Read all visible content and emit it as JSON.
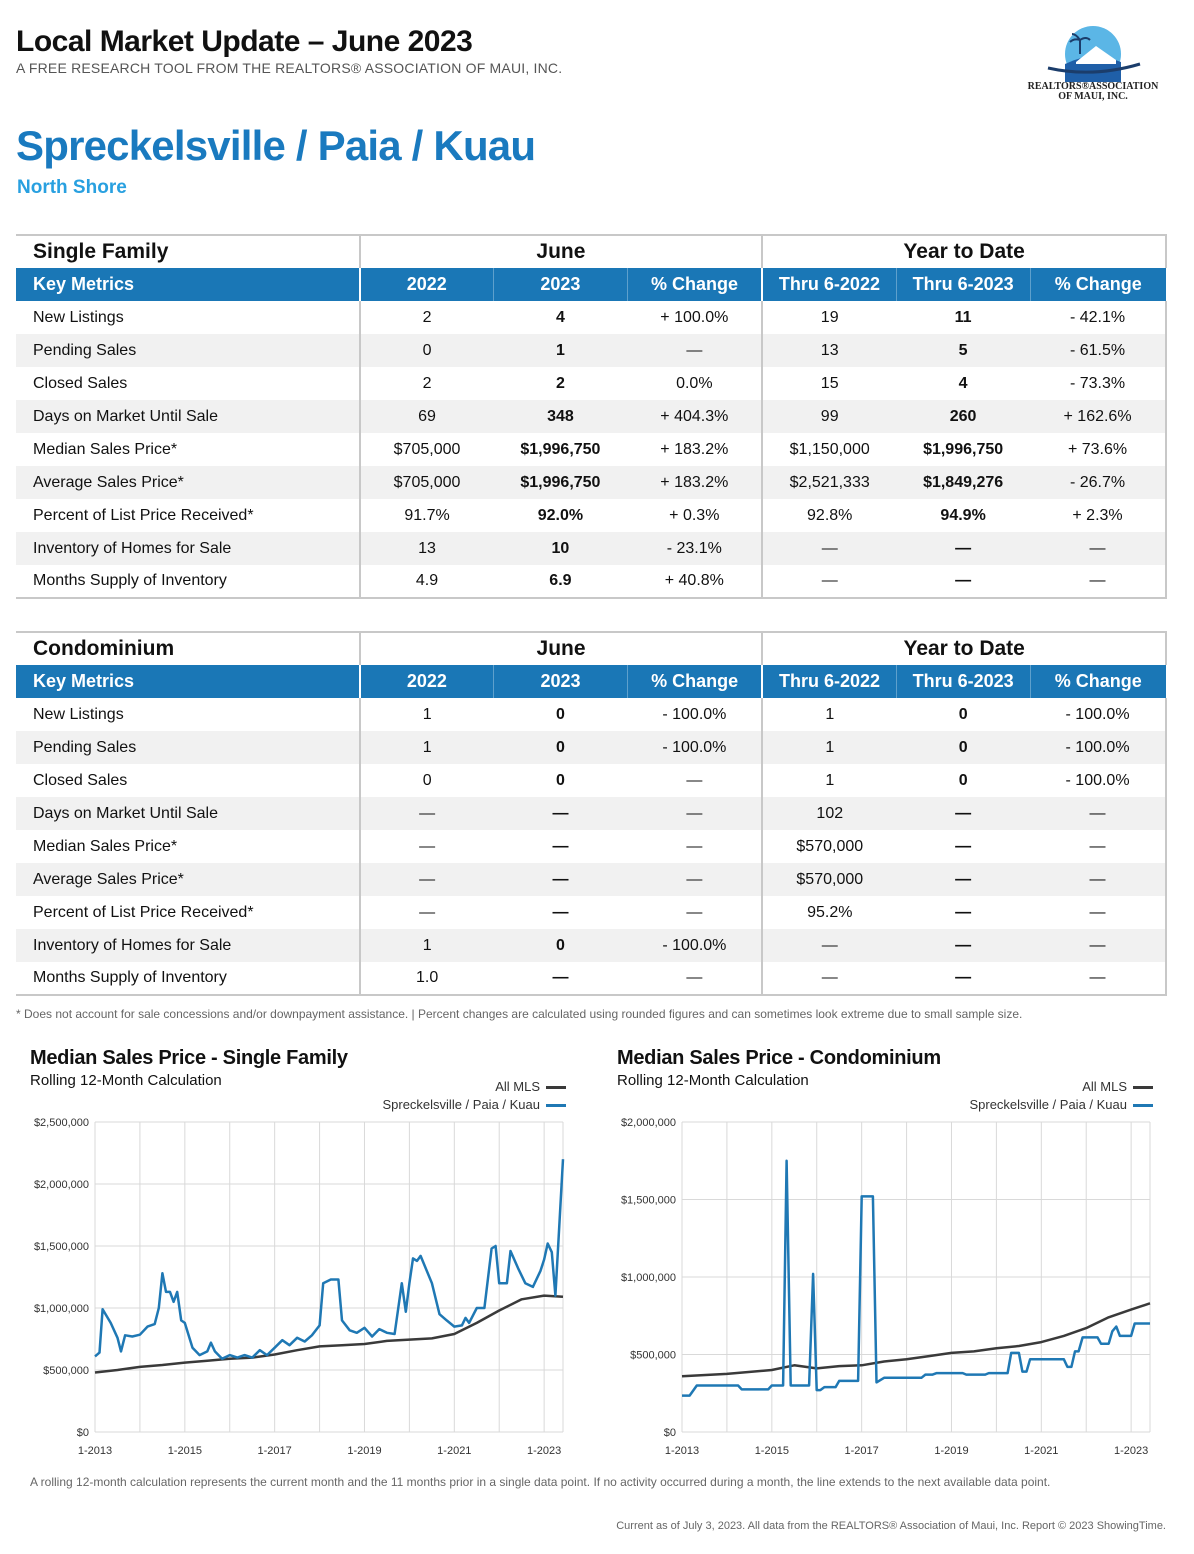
{
  "header": {
    "title": "Local Market Update – June 2023",
    "subtitle": "A FREE RESEARCH TOOL FROM THE REALTORS® ASSOCIATION OF MAUI, INC.",
    "area": "Spreckelsville / Paia / Kuau",
    "region": "North Shore",
    "logo_line1": "REALTORS®ASSOCIATION",
    "logo_line2": "OF MAUI, INC."
  },
  "tables": {
    "single_family": {
      "title": "Single Family",
      "period_june": "June",
      "period_ytd": "Year to Date",
      "headers": [
        "Key Metrics",
        "2022",
        "2023",
        "% Change",
        "Thru 6-2022",
        "Thru 6-2023",
        "% Change"
      ],
      "rows": [
        [
          "New Listings",
          "2",
          "4",
          "+ 100.0%",
          "19",
          "11",
          "- 42.1%"
        ],
        [
          "Pending Sales",
          "0",
          "1",
          "—",
          "13",
          "5",
          "- 61.5%"
        ],
        [
          "Closed Sales",
          "2",
          "2",
          "0.0%",
          "15",
          "4",
          "- 73.3%"
        ],
        [
          "Days on Market Until Sale",
          "69",
          "348",
          "+ 404.3%",
          "99",
          "260",
          "+ 162.6%"
        ],
        [
          "Median Sales Price*",
          "$705,000",
          "$1,996,750",
          "+ 183.2%",
          "$1,150,000",
          "$1,996,750",
          "+ 73.6%"
        ],
        [
          "Average Sales Price*",
          "$705,000",
          "$1,996,750",
          "+ 183.2%",
          "$2,521,333",
          "$1,849,276",
          "- 26.7%"
        ],
        [
          "Percent of List Price Received*",
          "91.7%",
          "92.0%",
          "+ 0.3%",
          "92.8%",
          "94.9%",
          "+ 2.3%"
        ],
        [
          "Inventory of Homes for Sale",
          "13",
          "10",
          "- 23.1%",
          "—",
          "—",
          "—"
        ],
        [
          "Months Supply of Inventory",
          "4.9",
          "6.9",
          "+ 40.8%",
          "—",
          "—",
          "—"
        ]
      ]
    },
    "condominium": {
      "title": "Condominium",
      "period_june": "June",
      "period_ytd": "Year to Date",
      "headers": [
        "Key Metrics",
        "2022",
        "2023",
        "% Change",
        "Thru 6-2022",
        "Thru 6-2023",
        "% Change"
      ],
      "rows": [
        [
          "New Listings",
          "1",
          "0",
          "- 100.0%",
          "1",
          "0",
          "- 100.0%"
        ],
        [
          "Pending Sales",
          "1",
          "0",
          "- 100.0%",
          "1",
          "0",
          "- 100.0%"
        ],
        [
          "Closed Sales",
          "0",
          "0",
          "—",
          "1",
          "0",
          "- 100.0%"
        ],
        [
          "Days on Market Until Sale",
          "—",
          "—",
          "—",
          "102",
          "—",
          "—"
        ],
        [
          "Median Sales Price*",
          "—",
          "—",
          "—",
          "$570,000",
          "—",
          "—"
        ],
        [
          "Average Sales Price*",
          "—",
          "—",
          "—",
          "$570,000",
          "—",
          "—"
        ],
        [
          "Percent of List Price Received*",
          "—",
          "—",
          "—",
          "95.2%",
          "—",
          "—"
        ],
        [
          "Inventory of Homes for Sale",
          "1",
          "0",
          "- 100.0%",
          "—",
          "—",
          "—"
        ],
        [
          "Months Supply of Inventory",
          "1.0",
          "—",
          "—",
          "—",
          "—",
          "—"
        ]
      ]
    }
  },
  "footnote": "* Does not account for sale concessions and/or downpayment assistance. | Percent changes are calculated using rounded figures and can sometimes look extreme due to small sample size.",
  "colors": {
    "primary": "#1a77b6",
    "area_title": "#1a7abf",
    "region": "#28a0e0",
    "all_mls": "#3a3a3a",
    "local": "#1f78b4"
  },
  "chart_data": [
    {
      "type": "line",
      "title": "Median Sales Price - Single Family",
      "subtitle": "Rolling 12-Month Calculation",
      "x_ticks": [
        "1-2013",
        "1-2015",
        "1-2017",
        "1-2019",
        "1-2021",
        "1-2023"
      ],
      "y_ticks": [
        "$0",
        "$500,000",
        "$1,000,000",
        "$1,500,000",
        "$2,000,000",
        "$2,500,000"
      ],
      "ylim": [
        0,
        2500000
      ],
      "xlim": [
        2013.0,
        2023.42
      ],
      "series": [
        {
          "name": "All MLS",
          "points": [
            [
              2013.0,
              480000
            ],
            [
              2013.5,
              500000
            ],
            [
              2014.0,
              525000
            ],
            [
              2014.5,
              540000
            ],
            [
              2015.0,
              560000
            ],
            [
              2015.5,
              575000
            ],
            [
              2016.0,
              590000
            ],
            [
              2016.5,
              600000
            ],
            [
              2017.0,
              625000
            ],
            [
              2017.5,
              660000
            ],
            [
              2018.0,
              690000
            ],
            [
              2018.5,
              700000
            ],
            [
              2019.0,
              710000
            ],
            [
              2019.5,
              735000
            ],
            [
              2020.0,
              745000
            ],
            [
              2020.5,
              755000
            ],
            [
              2021.0,
              790000
            ],
            [
              2021.5,
              880000
            ],
            [
              2022.0,
              980000
            ],
            [
              2022.5,
              1070000
            ],
            [
              2023.0,
              1100000
            ],
            [
              2023.42,
              1090000
            ]
          ]
        },
        {
          "name": "Spreckelsville / Paia / Kuau",
          "points": [
            [
              2013.0,
              610000
            ],
            [
              2013.1,
              640000
            ],
            [
              2013.17,
              990000
            ],
            [
              2013.35,
              880000
            ],
            [
              2013.5,
              760000
            ],
            [
              2013.58,
              650000
            ],
            [
              2013.67,
              780000
            ],
            [
              2013.83,
              770000
            ],
            [
              2014.0,
              785000
            ],
            [
              2014.17,
              850000
            ],
            [
              2014.33,
              870000
            ],
            [
              2014.42,
              1000000
            ],
            [
              2014.5,
              1280000
            ],
            [
              2014.58,
              1130000
            ],
            [
              2014.67,
              1130000
            ],
            [
              2014.75,
              1050000
            ],
            [
              2014.83,
              1130000
            ],
            [
              2014.92,
              900000
            ],
            [
              2015.0,
              880000
            ],
            [
              2015.17,
              680000
            ],
            [
              2015.33,
              620000
            ],
            [
              2015.5,
              650000
            ],
            [
              2015.58,
              720000
            ],
            [
              2015.67,
              650000
            ],
            [
              2015.83,
              590000
            ],
            [
              2016.0,
              620000
            ],
            [
              2016.17,
              600000
            ],
            [
              2016.33,
              620000
            ],
            [
              2016.5,
              600000
            ],
            [
              2016.67,
              660000
            ],
            [
              2016.83,
              620000
            ],
            [
              2017.0,
              680000
            ],
            [
              2017.17,
              740000
            ],
            [
              2017.33,
              700000
            ],
            [
              2017.5,
              760000
            ],
            [
              2017.67,
              730000
            ],
            [
              2017.83,
              780000
            ],
            [
              2018.0,
              860000
            ],
            [
              2018.08,
              1200000
            ],
            [
              2018.25,
              1230000
            ],
            [
              2018.42,
              1230000
            ],
            [
              2018.5,
              900000
            ],
            [
              2018.67,
              820000
            ],
            [
              2018.83,
              800000
            ],
            [
              2019.0,
              840000
            ],
            [
              2019.17,
              770000
            ],
            [
              2019.33,
              830000
            ],
            [
              2019.5,
              800000
            ],
            [
              2019.67,
              790000
            ],
            [
              2019.83,
              1200000
            ],
            [
              2019.92,
              970000
            ],
            [
              2020.0,
              1200000
            ],
            [
              2020.08,
              1400000
            ],
            [
              2020.17,
              1380000
            ],
            [
              2020.25,
              1420000
            ],
            [
              2020.5,
              1200000
            ],
            [
              2020.67,
              950000
            ],
            [
              2020.83,
              900000
            ],
            [
              2021.0,
              850000
            ],
            [
              2021.17,
              860000
            ],
            [
              2021.25,
              920000
            ],
            [
              2021.33,
              880000
            ],
            [
              2021.5,
              1000000
            ],
            [
              2021.67,
              1000000
            ],
            [
              2021.83,
              1480000
            ],
            [
              2021.92,
              1500000
            ],
            [
              2022.0,
              1200000
            ],
            [
              2022.17,
              1200000
            ],
            [
              2022.25,
              1460000
            ],
            [
              2022.42,
              1320000
            ],
            [
              2022.58,
              1200000
            ],
            [
              2022.75,
              1170000
            ],
            [
              2022.92,
              1300000
            ],
            [
              2023.0,
              1390000
            ],
            [
              2023.08,
              1520000
            ],
            [
              2023.17,
              1450000
            ],
            [
              2023.25,
              1100000
            ],
            [
              2023.42,
              2200000
            ]
          ]
        }
      ]
    },
    {
      "type": "line",
      "title": "Median Sales Price - Condominium",
      "subtitle": "Rolling 12-Month Calculation",
      "x_ticks": [
        "1-2013",
        "1-2015",
        "1-2017",
        "1-2019",
        "1-2021",
        "1-2023"
      ],
      "y_ticks": [
        "$0",
        "$500,000",
        "$1,000,000",
        "$1,500,000",
        "$2,000,000"
      ],
      "ylim": [
        0,
        2000000
      ],
      "xlim": [
        2013.0,
        2023.42
      ],
      "series": [
        {
          "name": "All MLS",
          "points": [
            [
              2013.0,
              360000
            ],
            [
              2014.0,
              375000
            ],
            [
              2015.0,
              400000
            ],
            [
              2015.5,
              430000
            ],
            [
              2016.0,
              410000
            ],
            [
              2016.5,
              425000
            ],
            [
              2017.0,
              430000
            ],
            [
              2017.5,
              455000
            ],
            [
              2018.0,
              470000
            ],
            [
              2018.5,
              490000
            ],
            [
              2019.0,
              510000
            ],
            [
              2019.5,
              520000
            ],
            [
              2020.0,
              540000
            ],
            [
              2020.5,
              555000
            ],
            [
              2021.0,
              580000
            ],
            [
              2021.5,
              620000
            ],
            [
              2022.0,
              670000
            ],
            [
              2022.5,
              740000
            ],
            [
              2023.0,
              790000
            ],
            [
              2023.42,
              830000
            ]
          ]
        },
        {
          "name": "Spreckelsville / Paia / Kuau",
          "points": [
            [
              2013.0,
              235000
            ],
            [
              2013.17,
              235000
            ],
            [
              2013.33,
              300000
            ],
            [
              2014.25,
              300000
            ],
            [
              2014.33,
              275000
            ],
            [
              2014.92,
              275000
            ],
            [
              2015.0,
              300000
            ],
            [
              2015.25,
              300000
            ],
            [
              2015.33,
              1750000
            ],
            [
              2015.42,
              300000
            ],
            [
              2015.83,
              300000
            ],
            [
              2015.92,
              1020000
            ],
            [
              2016.0,
              270000
            ],
            [
              2016.08,
              270000
            ],
            [
              2016.17,
              290000
            ],
            [
              2016.42,
              290000
            ],
            [
              2016.5,
              330000
            ],
            [
              2016.92,
              330000
            ],
            [
              2017.0,
              1520000
            ],
            [
              2017.25,
              1520000
            ],
            [
              2017.33,
              320000
            ],
            [
              2017.5,
              350000
            ],
            [
              2018.33,
              350000
            ],
            [
              2018.42,
              370000
            ],
            [
              2018.58,
              370000
            ],
            [
              2018.67,
              380000
            ],
            [
              2019.25,
              380000
            ],
            [
              2019.33,
              370000
            ],
            [
              2019.75,
              370000
            ],
            [
              2019.83,
              380000
            ],
            [
              2020.25,
              380000
            ],
            [
              2020.33,
              510000
            ],
            [
              2020.5,
              510000
            ],
            [
              2020.58,
              390000
            ],
            [
              2020.67,
              390000
            ],
            [
              2020.75,
              470000
            ],
            [
              2021.5,
              470000
            ],
            [
              2021.58,
              420000
            ],
            [
              2021.67,
              420000
            ],
            [
              2021.75,
              520000
            ],
            [
              2021.83,
              520000
            ],
            [
              2021.92,
              610000
            ],
            [
              2022.25,
              610000
            ],
            [
              2022.33,
              570000
            ],
            [
              2022.5,
              570000
            ],
            [
              2022.58,
              650000
            ],
            [
              2022.67,
              680000
            ],
            [
              2022.75,
              620000
            ],
            [
              2023.0,
              620000
            ],
            [
              2023.08,
              700000
            ],
            [
              2023.42,
              700000
            ]
          ]
        }
      ]
    }
  ],
  "rolling_note": "A rolling 12-month calculation represents the current month and the 11 months prior in a single data point. If no activity occurred during a month, the line extends to the next available data point.",
  "footer": "Current as of July 3, 2023. All data from the REALTORS® Association of Maui, Inc. Report © 2023 ShowingTime."
}
